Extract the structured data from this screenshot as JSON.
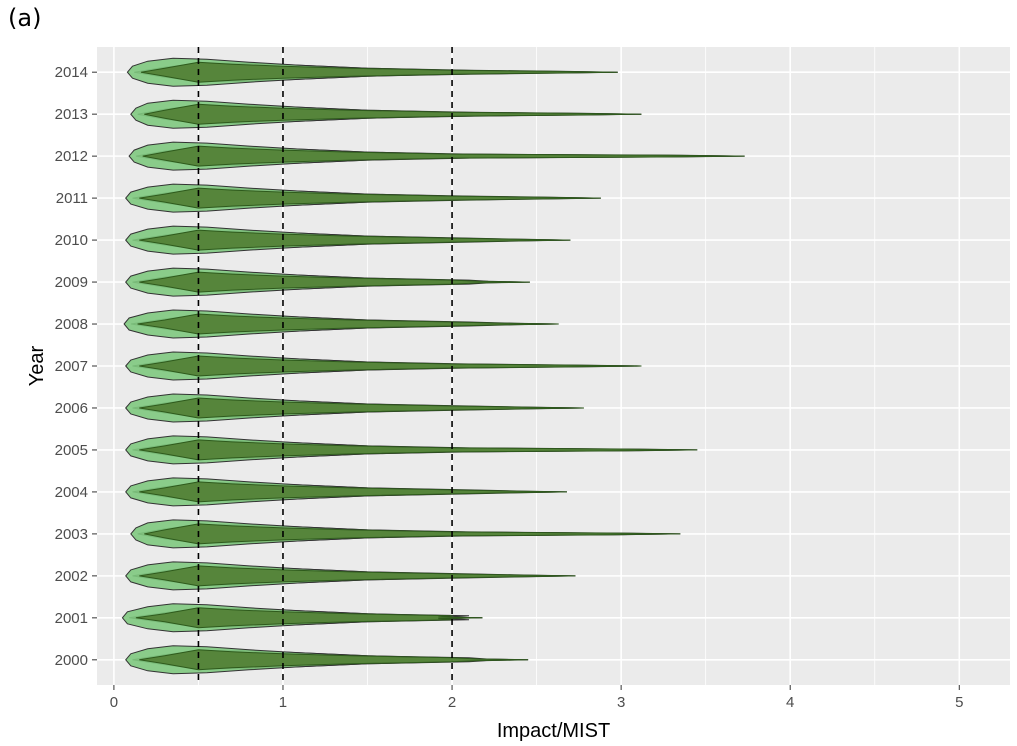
{
  "panel_label": "(a)",
  "chart_data": {
    "type": "violin",
    "xlabel": "Impact/MIST",
    "ylabel": "Year",
    "xlim": [
      -0.1,
      5.3
    ],
    "x_ticks": [
      0,
      1,
      2,
      3,
      4,
      5
    ],
    "x_tick_labels": [
      "0",
      "1",
      "2",
      "3",
      "4",
      "5"
    ],
    "reference_lines": [
      0.5,
      1,
      2
    ],
    "grid": true,
    "colors": {
      "panel": "#ebebeb",
      "grid": "#ffffff",
      "outer_fill": "#7fc97f",
      "inner_fill": "#4d7a2f",
      "pink_fill": "#c98a85",
      "outline": "#333333"
    },
    "categories": [
      "2000",
      "2001",
      "2002",
      "2003",
      "2004",
      "2005",
      "2006",
      "2007",
      "2008",
      "2009",
      "2010",
      "2011",
      "2012",
      "2013",
      "2014"
    ],
    "series": [
      {
        "year": "2000",
        "min": 0.07,
        "max": 2.45
      },
      {
        "year": "2001",
        "min": 0.05,
        "max": 2.18
      },
      {
        "year": "2002",
        "min": 0.07,
        "max": 2.73
      },
      {
        "year": "2003",
        "min": 0.1,
        "max": 3.35
      },
      {
        "year": "2004",
        "min": 0.07,
        "max": 2.68
      },
      {
        "year": "2005",
        "min": 0.07,
        "max": 3.45
      },
      {
        "year": "2006",
        "min": 0.07,
        "max": 2.78
      },
      {
        "year": "2007",
        "min": 0.07,
        "max": 3.12
      },
      {
        "year": "2008",
        "min": 0.06,
        "max": 2.63
      },
      {
        "year": "2009",
        "min": 0.07,
        "max": 2.46
      },
      {
        "year": "2010",
        "min": 0.07,
        "max": 2.7
      },
      {
        "year": "2011",
        "min": 0.07,
        "max": 2.88
      },
      {
        "year": "2012",
        "min": 0.09,
        "max": 3.73
      },
      {
        "year": "2013",
        "min": 0.1,
        "max": 3.12
      },
      {
        "year": "2014",
        "min": 0.08,
        "max": 2.98
      }
    ]
  }
}
